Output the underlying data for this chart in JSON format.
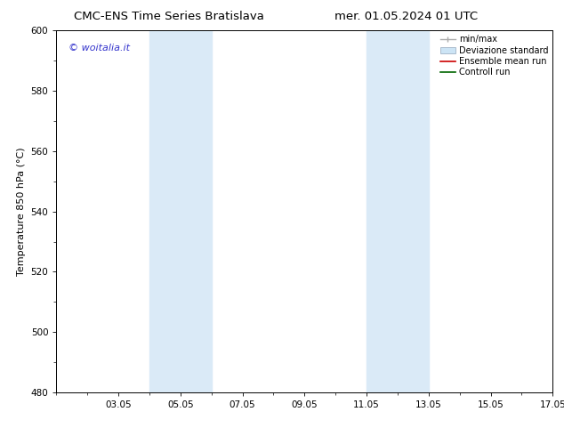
{
  "title_left": "CMC-ENS Time Series Bratislava",
  "title_right": "mer. 01.05.2024 01 UTC",
  "ylabel": "Temperature 850 hPa (°C)",
  "ylim": [
    480,
    600
  ],
  "yticks": [
    480,
    500,
    520,
    540,
    560,
    580,
    600
  ],
  "xlim_start": 1,
  "xlim_end": 17,
  "xtick_labels": [
    "03.05",
    "05.05",
    "07.05",
    "09.05",
    "11.05",
    "13.05",
    "15.05",
    "17.05"
  ],
  "xtick_positions": [
    3,
    5,
    7,
    9,
    11,
    13,
    15,
    17
  ],
  "shaded_bands": [
    {
      "x_start": 4.0,
      "x_end": 6.0,
      "color": "#daeaf7"
    },
    {
      "x_start": 11.0,
      "x_end": 13.0,
      "color": "#daeaf7"
    }
  ],
  "watermark_text": "© woitalia.it",
  "watermark_color": "#3333cc",
  "legend_labels": [
    "min/max",
    "Deviazione standard",
    "Ensemble mean run",
    "Controll run"
  ],
  "background_color": "#ffffff",
  "title_fontsize": 9.5,
  "axis_fontsize": 8,
  "tick_fontsize": 7.5
}
